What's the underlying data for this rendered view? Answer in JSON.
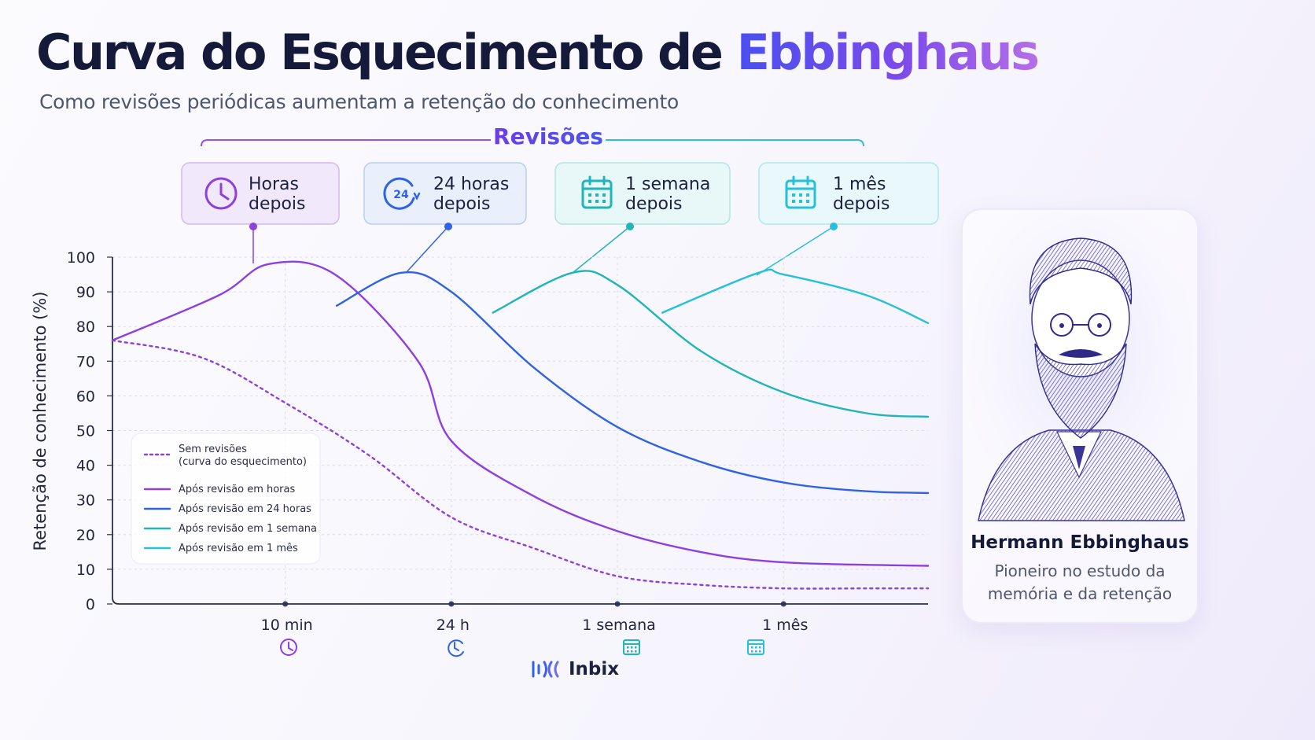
{
  "title": {
    "main": "Curva do Esquecimento de",
    "accent": "Ebbinghaus"
  },
  "subtitle": "Como revisões periódicas aumentam a retenção do conhecimento",
  "colors": {
    "purple": "#8e3fe0",
    "blue": "#2f63e6",
    "teal": "#21b5b8",
    "cyan": "#26c0d9",
    "title_dark": "#151a3a"
  },
  "revisoes": {
    "title": "Revisões",
    "cards": [
      {
        "line1": "Horas",
        "line2": "depois",
        "icon": "clock-icon"
      },
      {
        "line1": "24 horas",
        "line2": "depois",
        "icon": "clock-24-icon",
        "icon_text": "24"
      },
      {
        "line1": "1 semana",
        "line2": "depois",
        "icon": "calendar-icon"
      },
      {
        "line1": "1 mês",
        "line2": "depois",
        "icon": "calendar-icon"
      }
    ]
  },
  "chart_data": {
    "type": "line",
    "title": "",
    "xlabel": "",
    "ylabel": "Retenção de conhecimento (%)",
    "ylim": [
      0,
      100
    ],
    "yticks": [
      "0",
      "10",
      "20",
      "30",
      "40",
      "50",
      "60",
      "70",
      "80",
      "90",
      "100"
    ],
    "xticks": [
      "10 min",
      "24 h",
      "1 semana",
      "1 mês"
    ],
    "x_scale": "ordinal, 1 step = 1 marked checkpoint, 0 = start",
    "xlim": [
      -1.04,
      3.87
    ],
    "grid": true,
    "legend_position": "bottom-left",
    "series": [
      {
        "name": "Sem revisões\n(curva do esquecimento)",
        "style": "dotted",
        "color": "#8e3fe0",
        "points": [
          [
            -1.04,
            76
          ],
          [
            -0.5,
            71
          ],
          [
            0,
            58
          ],
          [
            0.5,
            43
          ],
          [
            1,
            25
          ],
          [
            1.5,
            16
          ],
          [
            2,
            8
          ],
          [
            2.5,
            5.5
          ],
          [
            3,
            4.5
          ],
          [
            3.5,
            4.5
          ],
          [
            3.87,
            4.5
          ]
        ]
      },
      {
        "name": "Após revisão em horas",
        "style": "solid",
        "color": "#8e3fe0",
        "points": [
          [
            -1.04,
            76
          ],
          [
            -0.4,
            89
          ],
          [
            -0.1,
            98
          ],
          [
            0.3,
            95
          ],
          [
            0.8,
            70
          ],
          [
            1,
            47
          ],
          [
            1.5,
            31
          ],
          [
            2,
            21
          ],
          [
            2.5,
            15
          ],
          [
            3,
            12
          ],
          [
            3.87,
            11
          ]
        ]
      },
      {
        "name": "Após revisão em 24 horas",
        "style": "solid",
        "color": "#2f63e6",
        "points": [
          [
            0.31,
            86
          ],
          [
            0.7,
            95.5
          ],
          [
            1,
            90
          ],
          [
            1.5,
            68
          ],
          [
            2,
            51
          ],
          [
            2.5,
            41
          ],
          [
            3,
            35
          ],
          [
            3.5,
            32.5
          ],
          [
            3.87,
            32
          ]
        ]
      },
      {
        "name": "Após revisão em 1 semana",
        "style": "solid",
        "color": "#21b5b8",
        "points": [
          [
            1.25,
            84
          ],
          [
            1.73,
            95.5
          ],
          [
            2,
            92
          ],
          [
            2.5,
            73
          ],
          [
            3,
            61
          ],
          [
            3.5,
            55
          ],
          [
            3.87,
            54
          ]
        ]
      },
      {
        "name": "Após revisão em 1 mês",
        "style": "solid",
        "color": "#26c0d9",
        "points": [
          [
            2.27,
            84
          ],
          [
            2.85,
            95.5
          ],
          [
            3,
            95
          ],
          [
            3.5,
            89
          ],
          [
            3.87,
            81
          ]
        ]
      }
    ]
  },
  "portrait": {
    "name": "Hermann Ebbinghaus",
    "description": "Pioneiro no estudo da memória e da retenção"
  },
  "brand": {
    "name": "Inbix"
  }
}
